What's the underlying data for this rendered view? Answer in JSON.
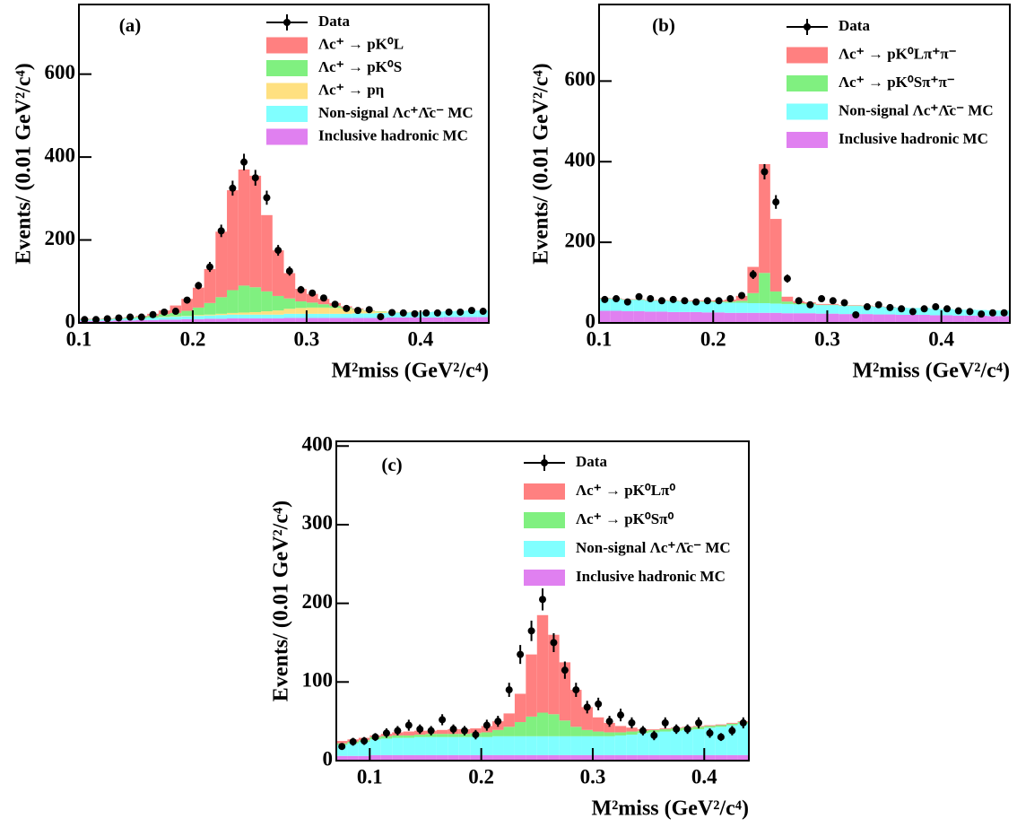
{
  "chart_data": [
    {
      "type": "histogram",
      "label": "(a)",
      "xlabel": "M²miss (GeV²/c⁴)",
      "ylabel": "Events/ (0.01 GeV²/c⁴)",
      "xlim": [
        0.1,
        0.46
      ],
      "ylim": [
        0,
        768
      ],
      "xticks": [
        0.1,
        0.2,
        0.3,
        0.4
      ],
      "yticks": [
        0,
        200,
        400,
        600
      ],
      "bins": [
        0.1,
        0.11,
        0.12,
        0.13,
        0.14,
        0.15,
        0.16,
        0.17,
        0.18,
        0.19,
        0.2,
        0.21,
        0.22,
        0.23,
        0.24,
        0.25,
        0.26,
        0.27,
        0.28,
        0.29,
        0.3,
        0.31,
        0.32,
        0.33,
        0.34,
        0.35,
        0.36,
        0.37,
        0.38,
        0.39,
        0.4,
        0.41,
        0.42,
        0.43,
        0.44,
        0.45,
        0.46
      ],
      "series": [
        {
          "name": "Λc⁺ → pK⁰L",
          "color": "#ff8080",
          "values": [
            1,
            1,
            1,
            1,
            1,
            2,
            5,
            9,
            18,
            29,
            48,
            82,
            158,
            241,
            280,
            269,
            184,
            110,
            61,
            30,
            21,
            13,
            7,
            3,
            2,
            1,
            0,
            0,
            0,
            0,
            0,
            0,
            0,
            0,
            0,
            0
          ]
        },
        {
          "name": "Λc⁺ → pK⁰S",
          "color": "#80f080",
          "values": [
            1,
            1,
            1,
            1,
            2,
            3,
            4,
            6,
            8,
            12,
            18,
            28,
            40,
            55,
            65,
            60,
            48,
            35,
            25,
            16,
            12,
            8,
            5,
            3,
            2,
            1,
            1,
            0,
            0,
            0,
            0,
            0,
            0,
            0,
            0,
            0
          ]
        },
        {
          "name": "Λc⁺ → pη",
          "color": "#ffe080",
          "values": [
            0,
            0,
            0,
            0,
            0,
            0,
            0,
            1,
            1,
            1,
            2,
            2,
            3,
            4,
            5,
            6,
            8,
            10,
            12,
            14,
            15,
            15,
            14,
            12,
            8,
            5,
            3,
            2,
            1,
            1,
            0,
            0,
            0,
            0,
            0,
            0
          ]
        },
        {
          "name": "Non-signal Λc⁺Λ̄c⁻ MC",
          "color": "#80ffff",
          "values": [
            3,
            3,
            4,
            4,
            5,
            5,
            6,
            6,
            7,
            7,
            8,
            8,
            9,
            9,
            9,
            9,
            9,
            9,
            10,
            10,
            10,
            10,
            10,
            10,
            11,
            11,
            12,
            12,
            12,
            13,
            13,
            14,
            14,
            15,
            16,
            16
          ]
        },
        {
          "name": "Inclusive hadronic MC",
          "color": "#e080f0",
          "values": [
            5,
            5,
            5,
            6,
            6,
            7,
            7,
            8,
            8,
            9,
            9,
            10,
            10,
            11,
            11,
            11,
            11,
            11,
            12,
            12,
            12,
            12,
            12,
            12,
            12,
            12,
            12,
            13,
            13,
            13,
            13,
            13,
            14,
            14,
            14,
            14
          ]
        }
      ],
      "data": {
        "name": "Data",
        "values": [
          8,
          8,
          10,
          12,
          14,
          14,
          20,
          26,
          28,
          55,
          90,
          135,
          222,
          325,
          388,
          350,
          302,
          175,
          125,
          80,
          72,
          60,
          45,
          35,
          30,
          32,
          15,
          25,
          24,
          22,
          24,
          24,
          26,
          26,
          30,
          28
        ],
        "errors": [
          3,
          3,
          3,
          3,
          4,
          4,
          4,
          5,
          5,
          7,
          9,
          12,
          15,
          18,
          20,
          19,
          17,
          13,
          11,
          9,
          8,
          8,
          7,
          6,
          5,
          6,
          4,
          5,
          5,
          5,
          5,
          5,
          5,
          5,
          5,
          5
        ]
      }
    },
    {
      "type": "histogram",
      "label": "(b)",
      "xlabel": "M²miss (GeV²/c⁴)",
      "ylabel": "Events/ (0.01 GeV²/c⁴)",
      "xlim": [
        0.1,
        0.46
      ],
      "ylim": [
        0,
        790
      ],
      "xticks": [
        0.1,
        0.2,
        0.3,
        0.4
      ],
      "yticks": [
        0,
        200,
        400,
        600
      ],
      "bins": [
        0.1,
        0.11,
        0.12,
        0.13,
        0.14,
        0.15,
        0.16,
        0.17,
        0.18,
        0.19,
        0.2,
        0.21,
        0.22,
        0.23,
        0.24,
        0.25,
        0.26,
        0.27,
        0.28,
        0.29,
        0.3,
        0.31,
        0.32,
        0.33,
        0.34,
        0.35,
        0.36,
        0.37,
        0.38,
        0.39,
        0.4,
        0.41,
        0.42,
        0.43,
        0.44,
        0.45,
        0.46
      ],
      "series": [
        {
          "name": "Λc⁺ → pK⁰Lπ⁺π⁻",
          "color": "#ff8080",
          "values": [
            1,
            1,
            1,
            1,
            1,
            1,
            1,
            1,
            2,
            2,
            3,
            5,
            12,
            65,
            270,
            180,
            12,
            5,
            3,
            2,
            2,
            1,
            1,
            1,
            1,
            1,
            0,
            0,
            0,
            0,
            0,
            0,
            0,
            0,
            0,
            0
          ]
        },
        {
          "name": "Λc⁺ → pK⁰Sπ⁺π⁻",
          "color": "#80f080",
          "values": [
            1,
            1,
            1,
            1,
            1,
            1,
            1,
            1,
            1,
            2,
            2,
            3,
            5,
            25,
            75,
            30,
            6,
            3,
            2,
            1,
            1,
            1,
            1,
            1,
            0,
            0,
            0,
            0,
            0,
            0,
            0,
            0,
            0,
            0,
            0,
            0
          ]
        },
        {
          "name": "Non-signal Λc⁺Λ̄c⁻ MC",
          "color": "#80ffff",
          "values": [
            30,
            29,
            28,
            28,
            27,
            27,
            27,
            26,
            26,
            26,
            25,
            25,
            25,
            24,
            24,
            23,
            23,
            22,
            22,
            21,
            21,
            20,
            20,
            19,
            19,
            18,
            18,
            17,
            17,
            16,
            16,
            15,
            15,
            14,
            14,
            14
          ]
        },
        {
          "name": "Inclusive hadronic MC",
          "color": "#e080f0",
          "values": [
            30,
            30,
            29,
            29,
            28,
            28,
            27,
            27,
            27,
            26,
            26,
            25,
            25,
            25,
            25,
            25,
            24,
            24,
            24,
            23,
            23,
            22,
            22,
            22,
            21,
            21,
            20,
            20,
            20,
            19,
            19,
            18,
            18,
            18,
            17,
            17
          ]
        }
      ],
      "data": {
        "name": "Data",
        "values": [
          58,
          60,
          52,
          65,
          60,
          55,
          58,
          55,
          52,
          55,
          55,
          60,
          68,
          120,
          375,
          300,
          110,
          55,
          45,
          60,
          55,
          50,
          20,
          40,
          45,
          38,
          35,
          28,
          35,
          40,
          35,
          30,
          28,
          22,
          25,
          25
        ],
        "errors": [
          8,
          8,
          7,
          8,
          8,
          7,
          8,
          7,
          7,
          7,
          7,
          8,
          8,
          11,
          19,
          17,
          10,
          7,
          7,
          8,
          7,
          7,
          4,
          6,
          7,
          6,
          6,
          5,
          6,
          6,
          6,
          5,
          5,
          5,
          5,
          5
        ]
      }
    },
    {
      "type": "histogram",
      "label": "(c)",
      "xlabel": "M²miss (GeV²/c⁴)",
      "ylabel": "Events/ (0.01 GeV²/c⁴)",
      "xlim": [
        0.07,
        0.44
      ],
      "ylim": [
        0,
        406
      ],
      "xticks": [
        0.1,
        0.2,
        0.3,
        0.4
      ],
      "yticks": [
        0,
        100,
        200,
        300,
        400
      ],
      "bins": [
        0.07,
        0.08,
        0.09,
        0.1,
        0.11,
        0.12,
        0.13,
        0.14,
        0.15,
        0.16,
        0.17,
        0.18,
        0.19,
        0.2,
        0.21,
        0.22,
        0.23,
        0.24,
        0.25,
        0.26,
        0.27,
        0.28,
        0.29,
        0.3,
        0.31,
        0.32,
        0.33,
        0.34,
        0.35,
        0.36,
        0.37,
        0.38,
        0.39,
        0.4,
        0.41,
        0.42,
        0.43,
        0.44
      ],
      "series": [
        {
          "name": "Λc⁺ → pK⁰Lπ⁰",
          "color": "#ff8080",
          "values": [
            3,
            3,
            3,
            2,
            3,
            4,
            5,
            5,
            4,
            5,
            6,
            6,
            6,
            8,
            11,
            17,
            36,
            79,
            124,
            101,
            74,
            47,
            29,
            18,
            12,
            8,
            5,
            2,
            1,
            1,
            1,
            1,
            1,
            1,
            1,
            1,
            1
          ]
        },
        {
          "name": "Λc⁺ → pK⁰Sπ⁰",
          "color": "#80f080",
          "values": [
            2,
            2,
            2,
            3,
            3,
            3,
            3,
            3,
            4,
            4,
            4,
            4,
            5,
            6,
            8,
            12,
            18,
            25,
            30,
            28,
            20,
            12,
            8,
            6,
            5,
            4,
            4,
            3,
            3,
            3,
            3,
            3,
            3,
            2,
            2,
            2,
            2
          ]
        },
        {
          "name": "Non-signal Λc⁺Λ̄c⁻ MC",
          "color": "#80ffff",
          "values": [
            14,
            16,
            18,
            20,
            21,
            22,
            22,
            23,
            23,
            23,
            23,
            23,
            23,
            23,
            24,
            24,
            24,
            24,
            24,
            24,
            24,
            24,
            24,
            24,
            24,
            25,
            26,
            28,
            29,
            30,
            31,
            32,
            33,
            35,
            36,
            38,
            40
          ]
        },
        {
          "name": "Inclusive hadronic MC",
          "color": "#e080f0",
          "values": [
            6,
            6,
            6,
            7,
            7,
            7,
            7,
            7,
            7,
            7,
            7,
            7,
            7,
            7,
            7,
            7,
            7,
            7,
            7,
            7,
            7,
            7,
            7,
            7,
            7,
            7,
            7,
            7,
            7,
            7,
            7,
            7,
            7,
            7,
            7,
            7,
            7
          ]
        }
      ],
      "data": {
        "name": "Data",
        "values": [
          18,
          24,
          25,
          30,
          35,
          38,
          45,
          40,
          38,
          52,
          40,
          38,
          33,
          45,
          50,
          90,
          135,
          165,
          205,
          150,
          115,
          90,
          68,
          72,
          50,
          58,
          48,
          38,
          32,
          48,
          40,
          40,
          48,
          35,
          30,
          38,
          48
        ],
        "errors": [
          4,
          5,
          5,
          5,
          6,
          6,
          7,
          6,
          6,
          7,
          6,
          6,
          6,
          7,
          7,
          9,
          12,
          13,
          14,
          12,
          11,
          9,
          8,
          8,
          7,
          8,
          7,
          6,
          6,
          7,
          6,
          6,
          7,
          6,
          5,
          6,
          7
        ]
      }
    }
  ]
}
